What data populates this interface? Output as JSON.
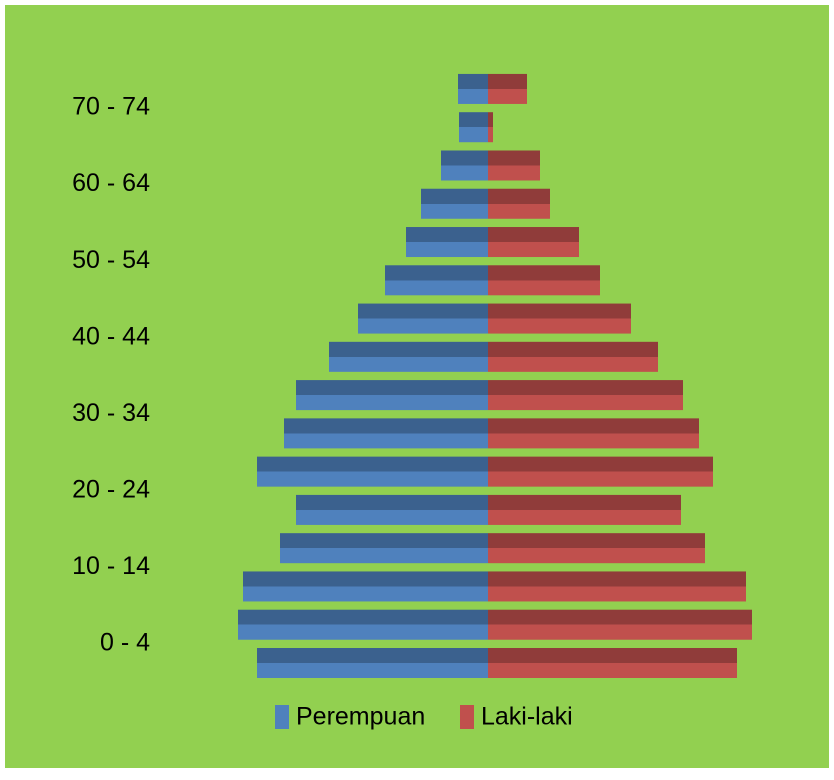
{
  "chart_data": {
    "type": "pyramid",
    "categories": [
      "0 - 4",
      null,
      "10 - 14",
      null,
      "20 - 24",
      null,
      "30 - 34",
      null,
      "40 - 44",
      null,
      "50 - 54",
      null,
      "60 - 64",
      null,
      "70 - 74",
      null
    ],
    "series": [
      {
        "name": "Perempuan",
        "color": "#4f81bd",
        "side": "left",
        "values": [
          231,
          250,
          245,
          208,
          192,
          231,
          204,
          192,
          159,
          130,
          103,
          82,
          67,
          47,
          29,
          30
        ]
      },
      {
        "name": "Laki-laki",
        "color": "#c0504d",
        "side": "right",
        "values": [
          249,
          264,
          258,
          217,
          193,
          225,
          211,
          195,
          170,
          143,
          112,
          91,
          62,
          52,
          5,
          39
        ]
      }
    ]
  }
}
